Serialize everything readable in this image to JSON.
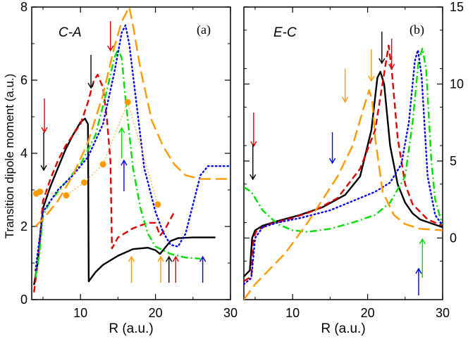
{
  "chart_data": [
    {
      "type": "line",
      "panel_label": "(a)",
      "transition": "C-A",
      "xlabel": "R (a.u.)",
      "ylabel": "Transition dipole moment (a.u.)",
      "xlim": [
        3.5,
        30
      ],
      "ylim": [
        0,
        8
      ],
      "xticks": [
        10,
        20,
        30
      ],
      "yticks": [
        0,
        2,
        4,
        6,
        8
      ],
      "series": [
        {
          "color": "#000000",
          "style": "solid",
          "points": [
            [
              3.8,
              0.4
            ],
            [
              4.3,
              1.0
            ],
            [
              5.0,
              2.5
            ],
            [
              6.0,
              3.1
            ],
            [
              7.0,
              3.6
            ],
            [
              8.0,
              4.1
            ],
            [
              9.0,
              4.5
            ],
            [
              10.0,
              4.85
            ],
            [
              10.6,
              4.95
            ],
            [
              11.0,
              4.8
            ],
            [
              11.1,
              0.5
            ],
            [
              12,
              0.75
            ],
            [
              13,
              0.95
            ],
            [
              15,
              1.2
            ],
            [
              17,
              1.38
            ],
            [
              19,
              1.42
            ],
            [
              20,
              1.35
            ],
            [
              20.6,
              1.25
            ],
            [
              21.2,
              1.4
            ],
            [
              22,
              1.6
            ],
            [
              23,
              1.68
            ],
            [
              25,
              1.7
            ],
            [
              28,
              1.7
            ]
          ]
        },
        {
          "color": "#dd0000",
          "style": "dashed",
          "points": [
            [
              3.8,
              0.2
            ],
            [
              4.3,
              1.0
            ],
            [
              5.0,
              2.7
            ],
            [
              6.0,
              3.3
            ],
            [
              7.0,
              3.8
            ],
            [
              8.0,
              4.2
            ],
            [
              9.0,
              4.5
            ],
            [
              10.0,
              4.8
            ],
            [
              11.0,
              5.4
            ],
            [
              11.8,
              6.0
            ],
            [
              12.3,
              6.15
            ],
            [
              13.0,
              5.8
            ],
            [
              13.5,
              5.0
            ],
            [
              14.0,
              3.8
            ],
            [
              14.2,
              1.4
            ],
            [
              15,
              1.7
            ],
            [
              17,
              1.95
            ],
            [
              19,
              2.1
            ],
            [
              20,
              2.1
            ],
            [
              20.6,
              1.75
            ],
            [
              21.2,
              1.9
            ],
            [
              22,
              2.2
            ],
            [
              22.5,
              2.4
            ]
          ]
        },
        {
          "color": "#00dd00",
          "style": "dashdot",
          "points": [
            [
              4.0,
              0.6
            ],
            [
              4.5,
              1.2
            ],
            [
              5.0,
              2.3
            ],
            [
              6.0,
              2.7
            ],
            [
              8.0,
              3.2
            ],
            [
              10.0,
              3.7
            ],
            [
              12.0,
              4.5
            ],
            [
              13.5,
              5.7
            ],
            [
              14.5,
              6.6
            ],
            [
              15.0,
              6.85
            ],
            [
              15.5,
              6.6
            ],
            [
              16.0,
              5.5
            ],
            [
              17.0,
              3.6
            ],
            [
              18.0,
              2.5
            ],
            [
              19.0,
              1.8
            ],
            [
              20.0,
              1.45
            ],
            [
              22.0,
              1.25
            ],
            [
              24.0,
              1.15
            ],
            [
              26.0,
              1.12
            ]
          ]
        },
        {
          "color": "#0000ee",
          "style": "dotted",
          "points": [
            [
              4.0,
              0.8
            ],
            [
              5.0,
              2.4
            ],
            [
              7.0,
              3.0
            ],
            [
              9.0,
              3.4
            ],
            [
              11.0,
              3.9
            ],
            [
              13.0,
              4.8
            ],
            [
              14.5,
              6.2
            ],
            [
              15.5,
              7.3
            ],
            [
              16.0,
              7.5
            ],
            [
              16.5,
              7.0
            ],
            [
              17.5,
              5.3
            ],
            [
              18.5,
              3.6
            ],
            [
              20.0,
              2.4
            ],
            [
              21.0,
              1.85
            ],
            [
              22.0,
              1.5
            ],
            [
              23.0,
              1.45
            ],
            [
              24.0,
              1.8
            ],
            [
              25.0,
              2.6
            ],
            [
              26.0,
              3.4
            ],
            [
              27.0,
              3.65
            ],
            [
              30.0,
              3.65
            ]
          ]
        },
        {
          "color": "#ff9900",
          "style": "longdash",
          "points": [
            [
              4.0,
              2.0
            ],
            [
              5.0,
              2.2
            ],
            [
              7.0,
              2.7
            ],
            [
              9.0,
              3.4
            ],
            [
              11.0,
              4.3
            ],
            [
              13.0,
              5.6
            ],
            [
              14.5,
              6.9
            ],
            [
              15.5,
              7.6
            ],
            [
              16.5,
              8.0
            ],
            [
              17.0,
              7.5
            ],
            [
              18.0,
              6.3
            ],
            [
              19.5,
              4.9
            ],
            [
              21.0,
              4.2
            ],
            [
              22.5,
              3.7
            ],
            [
              24.0,
              3.4
            ],
            [
              26.0,
              3.3
            ],
            [
              30.0,
              3.3
            ]
          ]
        },
        {
          "color": "#ff9900",
          "style": "dotted-markers",
          "points": [
            [
              4.1,
              2.9
            ],
            [
              4.6,
              2.95
            ],
            [
              8.1,
              2.85
            ],
            [
              10.5,
              3.2
            ],
            [
              13.0,
              3.7
            ],
            [
              16.3,
              5.4
            ],
            [
              20.3,
              2.6
            ]
          ]
        }
      ],
      "arrows": [
        {
          "color": "#dd0000",
          "direction": "down",
          "x": 5.2
        },
        {
          "color": "#000000",
          "direction": "down",
          "x": 5.1
        },
        {
          "color": "#000000",
          "direction": "down",
          "x": 11.4
        },
        {
          "color": "#dd0000",
          "direction": "down",
          "x": 14.0
        },
        {
          "color": "#00dd00",
          "direction": "up",
          "x": 15.5
        },
        {
          "color": "#0000ee",
          "direction": "up",
          "x": 15.8
        },
        {
          "color": "#ff9900",
          "direction": "up",
          "x": 16.8
        },
        {
          "color": "#ff9900",
          "direction": "up",
          "x": 20.7
        },
        {
          "color": "#000000",
          "direction": "up",
          "x": 21.8
        },
        {
          "color": "#dd0000",
          "direction": "up",
          "x": 22.7
        },
        {
          "color": "#0000ee",
          "direction": "up",
          "x": 26.3
        }
      ]
    },
    {
      "type": "line",
      "panel_label": "(b)",
      "transition": "E-C",
      "xlabel": "R (a.u.)",
      "ylabel": "",
      "xlim": [
        3.5,
        30
      ],
      "ylim": [
        -4,
        15
      ],
      "xticks": [
        10,
        20,
        30
      ],
      "yticks": [
        0,
        5,
        10,
        15
      ],
      "series": [
        {
          "color": "#000000",
          "style": "solid",
          "points": [
            [
              3.5,
              -2.5
            ],
            [
              4.3,
              -2.1
            ],
            [
              4.6,
              0.0
            ],
            [
              5.0,
              0.5
            ],
            [
              6.0,
              0.8
            ],
            [
              8.0,
              1.1
            ],
            [
              11.0,
              1.5
            ],
            [
              14.0,
              2.0
            ],
            [
              17.0,
              2.8
            ],
            [
              19.0,
              4.0
            ],
            [
              20.5,
              7.0
            ],
            [
              21.3,
              10.4
            ],
            [
              21.7,
              10.8
            ],
            [
              22.2,
              10.0
            ],
            [
              23.0,
              6.0
            ],
            [
              24.0,
              3.5
            ],
            [
              25.0,
              2.3
            ],
            [
              26.0,
              1.6
            ],
            [
              27.0,
              1.2
            ],
            [
              30.0,
              0.7
            ]
          ]
        },
        {
          "color": "#dd0000",
          "style": "dashed",
          "points": [
            [
              3.5,
              -2.8
            ],
            [
              4.5,
              -2.5
            ],
            [
              4.8,
              0.0
            ],
            [
              5.2,
              0.5
            ],
            [
              7.0,
              0.9
            ],
            [
              10.0,
              1.3
            ],
            [
              13.0,
              1.8
            ],
            [
              16.0,
              2.6
            ],
            [
              19.0,
              4.5
            ],
            [
              21.0,
              7.0
            ],
            [
              22.3,
              11.0
            ],
            [
              22.8,
              12.5
            ],
            [
              23.2,
              11.0
            ],
            [
              24.0,
              6.5
            ],
            [
              25.0,
              3.5
            ],
            [
              26.0,
              2.2
            ],
            [
              28.0,
              1.2
            ],
            [
              30.0,
              0.8
            ]
          ]
        },
        {
          "color": "#00dd00",
          "style": "dashdot",
          "points": [
            [
              3.5,
              3.3
            ],
            [
              4.5,
              3.0
            ],
            [
              6.0,
              1.8
            ],
            [
              8.0,
              0.9
            ],
            [
              10.0,
              0.5
            ],
            [
              12.0,
              0.4
            ],
            [
              15.0,
              0.6
            ],
            [
              18.0,
              1.0
            ],
            [
              21.0,
              1.5
            ],
            [
              23.0,
              2.3
            ],
            [
              25.0,
              4.0
            ],
            [
              26.0,
              7.5
            ],
            [
              26.8,
              11.5
            ],
            [
              27.3,
              12.3
            ],
            [
              27.8,
              11.0
            ],
            [
              28.5,
              5.0
            ],
            [
              29.0,
              2.5
            ],
            [
              30.0,
              0.8
            ]
          ]
        },
        {
          "color": "#0000ee",
          "style": "dotted",
          "points": [
            [
              3.5,
              -3.0
            ],
            [
              4.5,
              -2.6
            ],
            [
              5.0,
              0.0
            ],
            [
              6.0,
              0.7
            ],
            [
              8.0,
              1.0
            ],
            [
              11.0,
              1.3
            ],
            [
              15.0,
              1.8
            ],
            [
              18.0,
              2.4
            ],
            [
              21.0,
              3.0
            ],
            [
              23.0,
              3.6
            ],
            [
              24.5,
              4.8
            ],
            [
              25.5,
              7.5
            ],
            [
              26.3,
              11.5
            ],
            [
              26.7,
              12.2
            ],
            [
              27.2,
              10.5
            ],
            [
              28.0,
              4.0
            ],
            [
              29.0,
              1.5
            ],
            [
              30.0,
              0.8
            ]
          ]
        },
        {
          "color": "#ff9900",
          "style": "longdash",
          "points": [
            [
              3.5,
              -4.0
            ],
            [
              5.0,
              -3.0
            ],
            [
              7.0,
              -2.0
            ],
            [
              9.0,
              -1.0
            ],
            [
              10.5,
              0.0
            ],
            [
              12.0,
              1.0
            ],
            [
              14.0,
              2.5
            ],
            [
              16.0,
              4.0
            ],
            [
              18.0,
              6.0
            ],
            [
              19.5,
              8.5
            ],
            [
              20.2,
              9.6
            ],
            [
              20.6,
              9.0
            ],
            [
              21.0,
              6.5
            ],
            [
              22.0,
              3.0
            ],
            [
              23.5,
              1.5
            ],
            [
              25.0,
              0.9
            ],
            [
              27.0,
              0.6
            ],
            [
              30.0,
              0.5
            ]
          ]
        }
      ],
      "arrows": [
        {
          "color": "#dd0000",
          "direction": "down",
          "x": 4.8
        },
        {
          "color": "#000000",
          "direction": "down",
          "x": 4.7
        },
        {
          "color": "#0000ee",
          "direction": "down",
          "x": 15.3
        },
        {
          "color": "#ff9900",
          "direction": "down",
          "x": 17.0
        },
        {
          "color": "#ff9900",
          "direction": "down",
          "x": 20.5
        },
        {
          "color": "#000000",
          "direction": "down",
          "x": 21.9
        },
        {
          "color": "#dd0000",
          "direction": "down",
          "x": 23.2
        },
        {
          "color": "#00dd00",
          "direction": "up",
          "x": 27.3
        },
        {
          "color": "#0000ee",
          "direction": "up",
          "x": 26.8
        }
      ]
    }
  ]
}
